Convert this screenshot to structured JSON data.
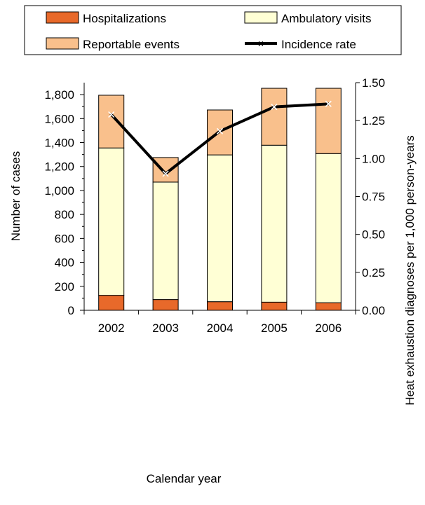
{
  "chart_data": {
    "type": "bar",
    "subtype": "stacked-bar-with-line",
    "categories": [
      "2002",
      "2003",
      "2004",
      "2005",
      "2006"
    ],
    "series": [
      {
        "name": "Hospitalizations",
        "kind": "bar",
        "axis": "left",
        "color": "#E8692A",
        "values": [
          125,
          90,
          72,
          68,
          63
        ]
      },
      {
        "name": "Ambulatory visits",
        "kind": "bar",
        "axis": "left",
        "color": "#FFFFD5",
        "values": [
          1230,
          980,
          1225,
          1310,
          1245
        ]
      },
      {
        "name": "Reportable events",
        "kind": "bar",
        "axis": "left",
        "color": "#F9C08C",
        "values": [
          440,
          205,
          375,
          475,
          545
        ]
      },
      {
        "name": "Incidence rate",
        "kind": "line",
        "axis": "right",
        "color": "#000000",
        "marker": "x",
        "values": [
          1.29,
          0.9,
          1.18,
          1.34,
          1.36
        ]
      }
    ],
    "xlabel": "Calendar year",
    "ylabel": "Number of cases",
    "y2label": "Heat exhaustion diagnoses per 1,000 person-years",
    "ylim": [
      0,
      1900
    ],
    "y2lim": [
      0,
      1.5
    ],
    "yticks": [
      "0",
      "200",
      "400",
      "600",
      "800",
      "1,000",
      "1,200",
      "1,400",
      "1,600",
      "1,800"
    ],
    "yticks_values": [
      0,
      200,
      400,
      600,
      800,
      1000,
      1200,
      1400,
      1600,
      1800
    ],
    "y2ticks": [
      "0.00",
      "0.25",
      "0.50",
      "0.75",
      "1.00",
      "1.25",
      "1.50"
    ],
    "y2ticks_values": [
      0,
      0.25,
      0.5,
      0.75,
      1.0,
      1.25,
      1.5
    ],
    "grid": false,
    "legend_position": "top"
  }
}
